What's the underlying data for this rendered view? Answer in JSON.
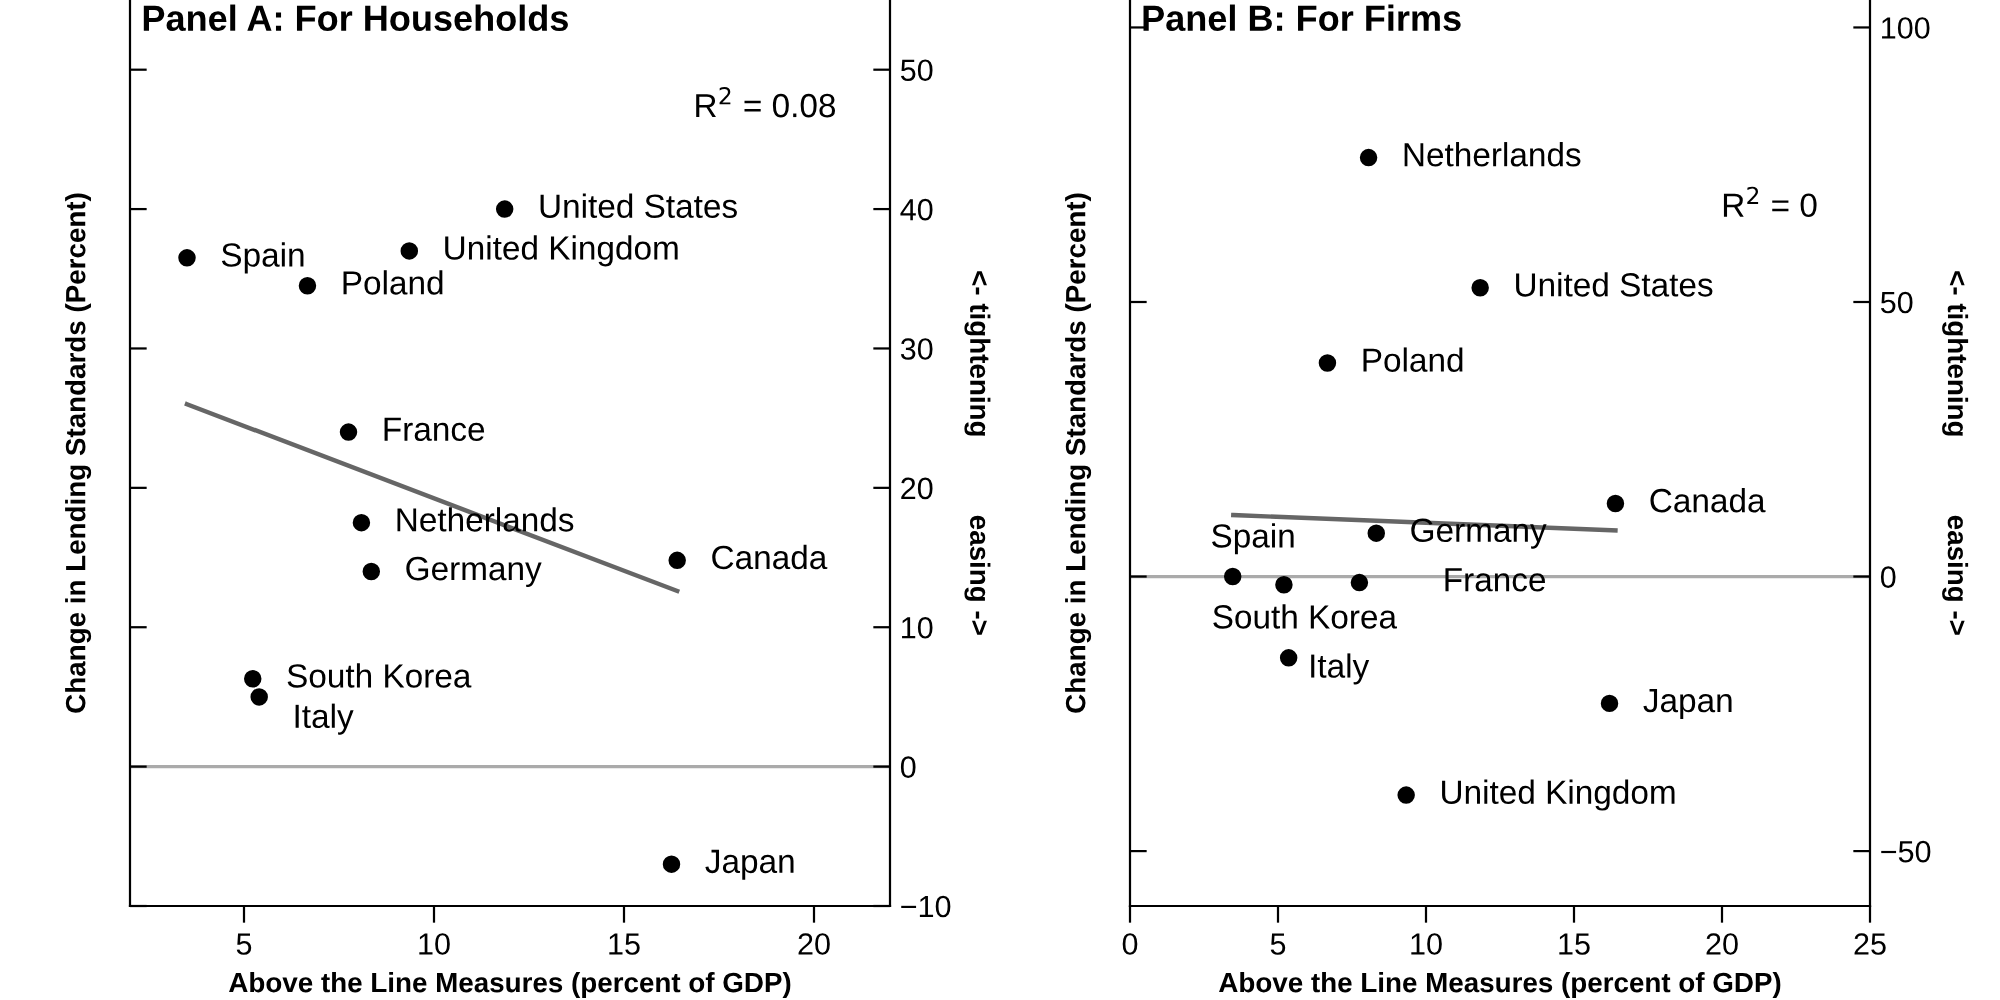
{
  "chart_data": [
    {
      "type": "scatter",
      "title": "Panel A: For Households",
      "xlabel": "Above the Line Measures (percent of GDP)",
      "ylabel": "Change in Lending Standards (Percent)",
      "y2label": "<- tightening          easing ->",
      "xlim": [
        2,
        22
      ],
      "xticks": [
        5,
        10,
        15,
        20
      ],
      "ylim": [
        -10,
        55
      ],
      "yticks": [
        {
          "value": -10,
          "label": "−10"
        },
        0,
        10,
        20,
        30,
        40,
        50
      ],
      "grid": false,
      "legend": false,
      "series": [
        {
          "marker": "circle",
          "color": "#000000",
          "x": [
            3.5,
            6.67,
            9.35,
            11.86,
            7.75,
            8.09,
            8.35,
            16.4,
            5.23,
            5.4,
            16.25
          ],
          "values": [
            36.5,
            34.5,
            37.0,
            40.0,
            24.0,
            17.5,
            14.0,
            14.8,
            6.3,
            5.0,
            -7.0
          ]
        },
        {
          "type": "line",
          "color": "#666666",
          "x": [
            3.5,
            16.4
          ],
          "values": [
            26.0,
            12.6
          ]
        }
      ],
      "ref_lines": [
        {
          "axis": "y",
          "value": 0,
          "color": "#aaaaaa"
        }
      ],
      "annotations": [
        {
          "text": "Spain",
          "x": 3.5,
          "y": 36.5
        },
        {
          "text": "Poland",
          "x": 6.67,
          "y": 34.5
        },
        {
          "text": "United Kingdom",
          "x": 9.35,
          "y": 37.0
        },
        {
          "text": "United States",
          "x": 11.86,
          "y": 40.0
        },
        {
          "text": "France",
          "x": 7.75,
          "y": 24.0
        },
        {
          "text": "Netherlands",
          "x": 8.09,
          "y": 17.5
        },
        {
          "text": "Germany",
          "x": 8.35,
          "y": 14.0
        },
        {
          "text": "Canada",
          "x": 16.4,
          "y": 14.8
        },
        {
          "text": "South Korea",
          "x": 5.23,
          "y": 6.3
        },
        {
          "text": "Italy",
          "x": 5.4,
          "y": 5.0
        },
        {
          "text": "Japan",
          "x": 16.25,
          "y": -7.0
        },
        "R$^{2}$ = 0.08"
      ]
    },
    {
      "type": "scatter",
      "title": "Panel B: For Firms",
      "xlabel": "Above the Line Measures (percent of GDP)",
      "ylabel": "Change in Lending Standards (Percent)",
      "y2label": "<- tightening          easing ->",
      "xlim": [
        0,
        25
      ],
      "xticks": [
        0,
        5,
        10,
        15,
        20,
        25
      ],
      "ylim": [
        -60,
        105
      ],
      "yticks": [
        {
          "value": -50,
          "label": "−50"
        },
        0,
        50,
        100
      ],
      "grid": false,
      "legend": false,
      "series": [
        {
          "marker": "circle",
          "color": "#000000",
          "x": [
            8.06,
            11.83,
            6.67,
            16.4,
            8.32,
            3.47,
            5.2,
            7.75,
            5.36,
            16.2,
            9.33
          ],
          "values": [
            76.3,
            52.6,
            38.9,
            13.3,
            7.9,
            0,
            -1.5,
            -1.1,
            -14.8,
            -23.1,
            -39.8
          ]
        },
        {
          "type": "line",
          "color": "#666666",
          "x": [
            3.49,
            16.4
          ],
          "values": [
            11.2,
            8.4
          ]
        }
      ],
      "ref_lines": [
        {
          "axis": "y",
          "value": 0,
          "color": "#aaaaaa"
        }
      ],
      "annotations": [
        {
          "text": "Netherlands",
          "x": 8.06,
          "y": 76.3
        },
        {
          "text": "United States",
          "x": 11.83,
          "y": 52.6
        },
        {
          "text": "Poland",
          "x": 6.67,
          "y": 38.9
        },
        {
          "text": "Canada",
          "x": 16.4,
          "y": 13.3
        },
        {
          "text": "Germany",
          "x": 8.32,
          "y": 7.9
        },
        {
          "text": "Spain",
          "x": 3.47,
          "y": 0
        },
        {
          "text": "South Korea",
          "x": 5.2,
          "y": -1.5
        },
        {
          "text": "France",
          "x": 7.75,
          "y": -1.1
        },
        {
          "text": "Italy",
          "x": 5.36,
          "y": -14.8
        },
        {
          "text": "Japan",
          "x": 16.2,
          "y": -23.1
        },
        {
          "text": "United Kingdom",
          "x": 9.33,
          "y": -39.8
        },
        "R$^{2}$ = 0"
      ]
    }
  ]
}
